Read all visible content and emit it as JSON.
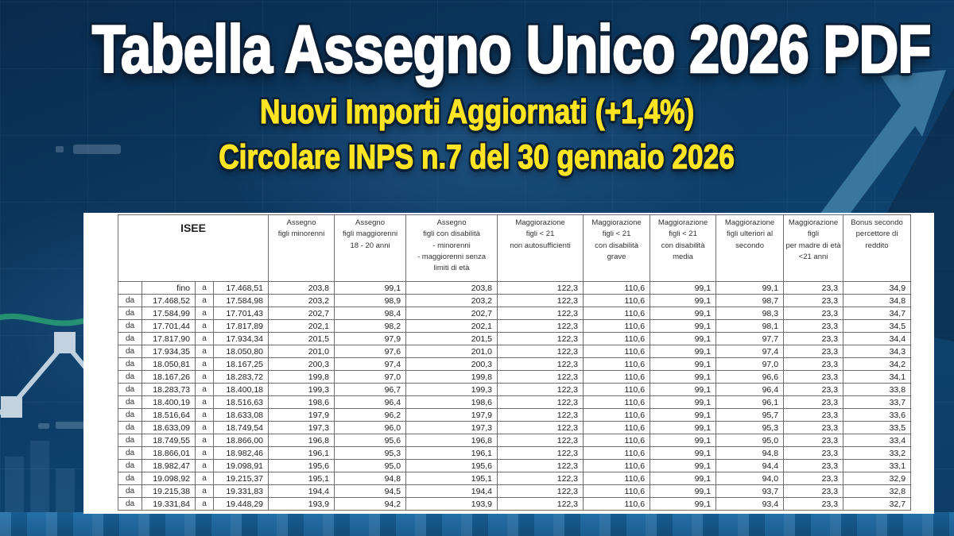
{
  "header": {
    "title": "Tabella Assegno Unico 2026 PDF",
    "subtitle1": "Nuovi Importi Aggiornati (+1,4%)",
    "subtitle2": "Circolare INPS n.7 del 30 gennaio 2026"
  },
  "colors": {
    "background_navy": "#0c3a63",
    "accent_yellow": "#ffe422",
    "title_white": "#ffffff",
    "arrow_teal": "#4787ad",
    "chart_green": "#2ba573",
    "table_border": "#6e6e6e",
    "bottom_strip_blue": "#1a6aa5"
  },
  "background_icons": [
    {
      "name": "trend-up-arrow-icon"
    },
    {
      "name": "line-chart-icon"
    },
    {
      "name": "zigzag-nodes-icon"
    },
    {
      "name": "bar-chart-icon"
    }
  ],
  "table": {
    "isee_header": "ISEE",
    "columns": [
      "Assegno\nfigli minorenni",
      "Assegno\nfigli maggiorenni\n18 - 20 anni",
      "Assegno\nfigli con disabilità\n- minorenni\n- maggiorenni senza\nlimiti di età",
      "Maggiorazione\nfigli < 21\nnon autosufficienti",
      "Maggiorazione\nfigli < 21\ncon disabilità\ngrave",
      "Maggiorazione\nfigli < 21\ncon disabilità\nmedia",
      "Maggiorazione\nfigli ulteriori al\nsecondo",
      "Maggiorazione\nfigli\nper madre di età\n<21 anni",
      "Bonus secondo\npercettore di\nreddito"
    ],
    "rows": [
      [
        "",
        "fino",
        "a",
        "17.468,51",
        "203,8",
        "99,1",
        "203,8",
        "122,3",
        "110,6",
        "99,1",
        "99,1",
        "23,3",
        "34,9"
      ],
      [
        "da",
        "17.468,52",
        "a",
        "17.584,98",
        "203,2",
        "98,9",
        "203,2",
        "122,3",
        "110,6",
        "99,1",
        "98,7",
        "23,3",
        "34,8"
      ],
      [
        "da",
        "17.584,99",
        "a",
        "17.701,43",
        "202,7",
        "98,4",
        "202,7",
        "122,3",
        "110,6",
        "99,1",
        "98,3",
        "23,3",
        "34,7"
      ],
      [
        "da",
        "17.701,44",
        "a",
        "17.817,89",
        "202,1",
        "98,2",
        "202,1",
        "122,3",
        "110,6",
        "99,1",
        "98,1",
        "23,3",
        "34,5"
      ],
      [
        "da",
        "17.817,90",
        "a",
        "17.934,34",
        "201,5",
        "97,9",
        "201,5",
        "122,3",
        "110,6",
        "99,1",
        "97,7",
        "23,3",
        "34,4"
      ],
      [
        "da",
        "17.934,35",
        "a",
        "18.050,80",
        "201,0",
        "97,6",
        "201,0",
        "122,3",
        "110,6",
        "99,1",
        "97,4",
        "23,3",
        "34,3"
      ],
      [
        "da",
        "18.050,81",
        "a",
        "18.167,25",
        "200,3",
        "97,4",
        "200,3",
        "122,3",
        "110,6",
        "99,1",
        "97,0",
        "23,3",
        "34,2"
      ],
      [
        "da",
        "18.167,26",
        "a",
        "18.283,72",
        "199,8",
        "97,0",
        "199,8",
        "122,3",
        "110,6",
        "99,1",
        "96,6",
        "23,3",
        "34,1"
      ],
      [
        "da",
        "18.283,73",
        "a",
        "18.400,18",
        "199,3",
        "96,7",
        "199,3",
        "122,3",
        "110,6",
        "99,1",
        "96,4",
        "23,3",
        "33,8"
      ],
      [
        "da",
        "18.400,19",
        "a",
        "18.516,63",
        "198,6",
        "96,4",
        "198,6",
        "122,3",
        "110,6",
        "99,1",
        "96,1",
        "23,3",
        "33,7"
      ],
      [
        "da",
        "18.516,64",
        "a",
        "18.633,08",
        "197,9",
        "96,2",
        "197,9",
        "122,3",
        "110,6",
        "99,1",
        "95,7",
        "23,3",
        "33,6"
      ],
      [
        "da",
        "18.633,09",
        "a",
        "18.749,54",
        "197,3",
        "96,0",
        "197,3",
        "122,3",
        "110,6",
        "99,1",
        "95,3",
        "23,3",
        "33,5"
      ],
      [
        "da",
        "18.749,55",
        "a",
        "18.866,00",
        "196,8",
        "95,6",
        "196,8",
        "122,3",
        "110,6",
        "99,1",
        "95,0",
        "23,3",
        "33,4"
      ],
      [
        "da",
        "18.866,01",
        "a",
        "18.982,46",
        "196,1",
        "95,3",
        "196,1",
        "122,3",
        "110,6",
        "99,1",
        "94,8",
        "23,3",
        "33,2"
      ],
      [
        "da",
        "18.982,47",
        "a",
        "19.098,91",
        "195,6",
        "95,0",
        "195,6",
        "122,3",
        "110,6",
        "99,1",
        "94,4",
        "23,3",
        "33,1"
      ],
      [
        "da",
        "19.098,92",
        "a",
        "19.215,37",
        "195,1",
        "94,8",
        "195,1",
        "122,3",
        "110,6",
        "99,1",
        "94,0",
        "23,3",
        "32,9"
      ],
      [
        "da",
        "19.215,38",
        "a",
        "19.331,83",
        "194,4",
        "94,5",
        "194,4",
        "122,3",
        "110,6",
        "99,1",
        "93,7",
        "23,3",
        "32,8"
      ],
      [
        "da",
        "19.331,84",
        "a",
        "19.448,29",
        "193,9",
        "94,2",
        "193,9",
        "122,3",
        "110,6",
        "99,1",
        "93,4",
        "23,3",
        "32,7"
      ]
    ]
  }
}
